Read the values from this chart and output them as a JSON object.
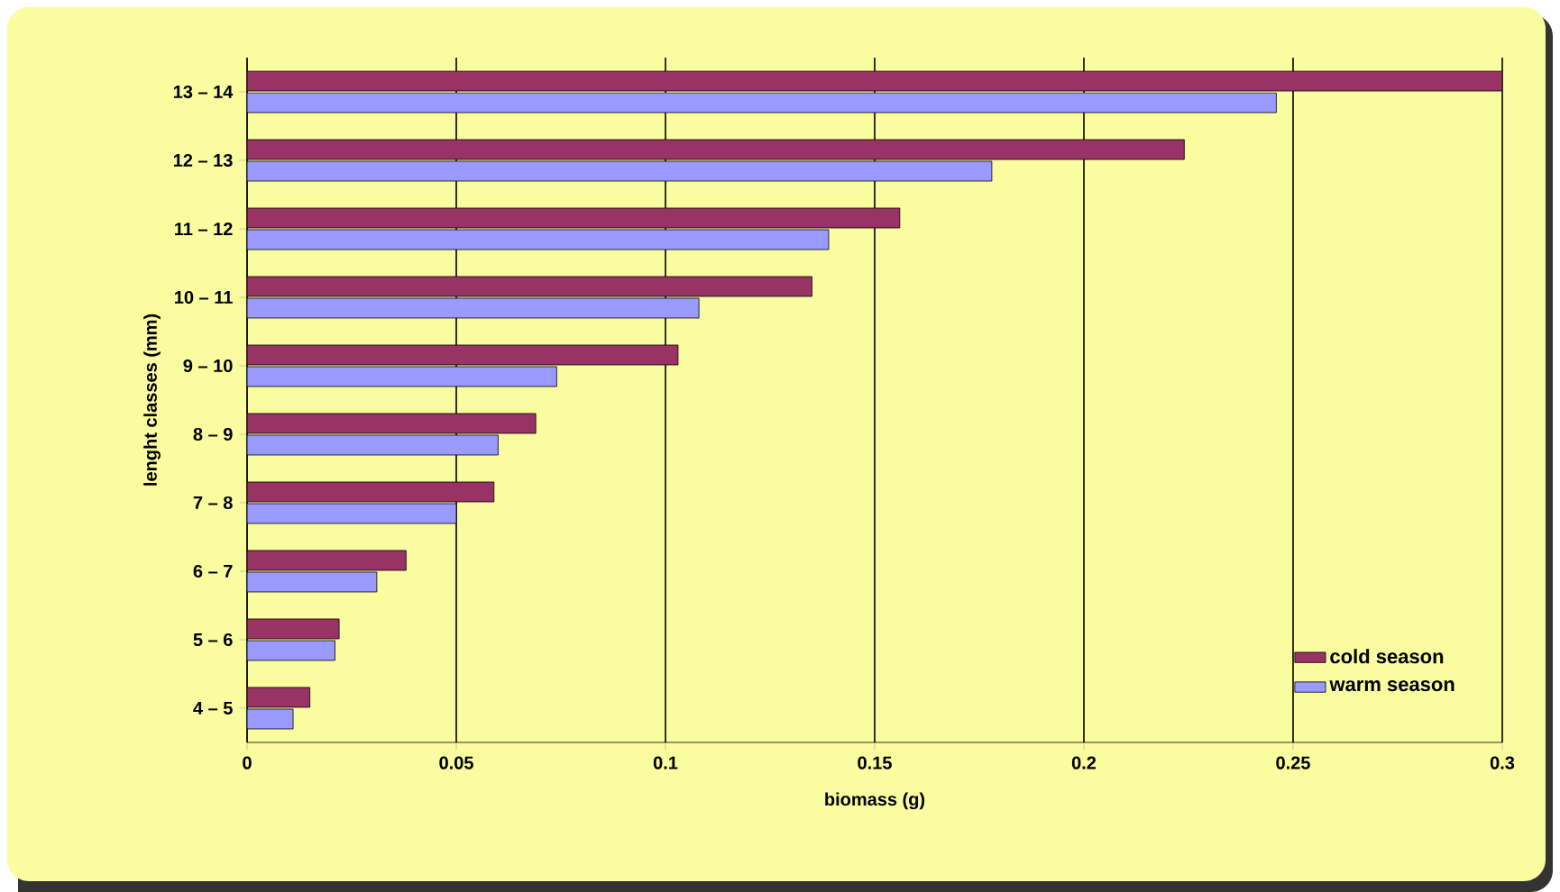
{
  "chart_data": {
    "type": "bar",
    "orientation": "horizontal",
    "xlabel": "biomass (g)",
    "ylabel": "lenght classes (mm)",
    "categories": [
      "13 – 14",
      "12 – 13",
      "11 – 12",
      "10 – 11",
      "9 – 10",
      "8 – 9",
      "7 – 8",
      "6 – 7",
      "5 – 6",
      "4 – 5"
    ],
    "series": [
      {
        "name": "cold season",
        "color": "#993366",
        "values": [
          0.3,
          0.224,
          0.156,
          0.135,
          0.103,
          0.069,
          0.059,
          0.038,
          0.022,
          0.015
        ]
      },
      {
        "name": "warm season",
        "color": "#9999ff",
        "values": [
          0.246,
          0.178,
          0.139,
          0.108,
          0.074,
          0.06,
          0.05,
          0.031,
          0.021,
          0.011
        ]
      }
    ],
    "xlim": [
      0,
      0.3
    ],
    "xticks": [
      0,
      0.05,
      0.1,
      0.15,
      0.2,
      0.25,
      0.3
    ],
    "grid": "x",
    "legend": "bottom right"
  }
}
